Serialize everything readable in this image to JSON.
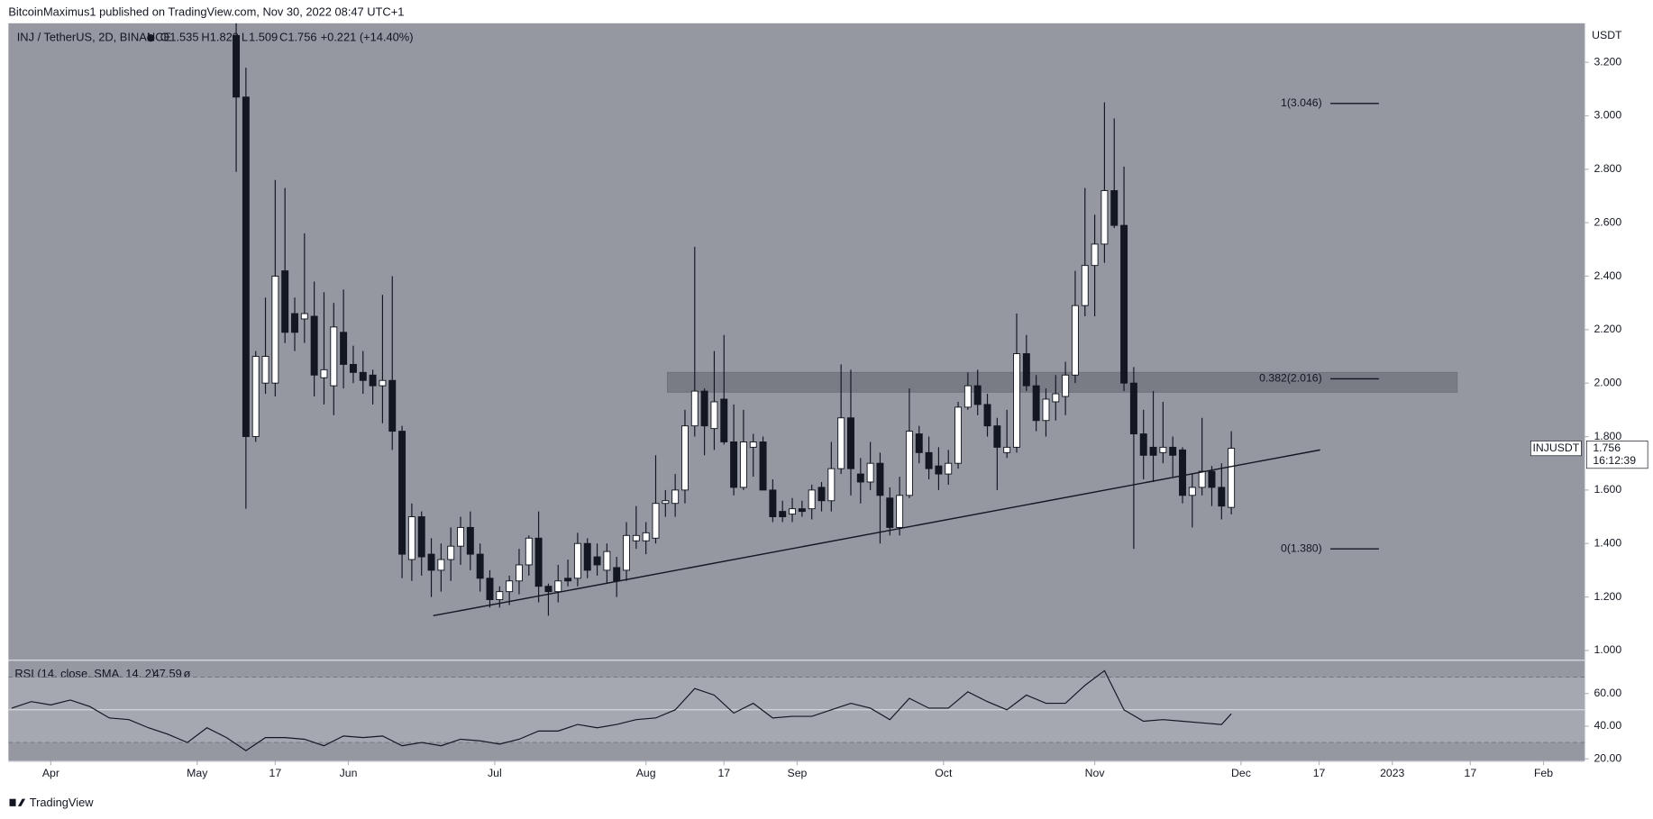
{
  "header": {
    "publisher": "BitcoinMaximus1 published on TradingView.com, Nov 30, 2022 08:47 UTC+1",
    "footer": "TradingView"
  },
  "chart_data": [
    {
      "type": "candlestick",
      "title": "INJ / TetherUS, 2D, BINANCE",
      "ohlc_legend": [
        [
          "O",
          "1.535"
        ],
        [
          "H",
          "1.820"
        ],
        [
          "L",
          "1.509"
        ],
        [
          "C",
          "1.756"
        ]
      ],
      "change": "+0.221 (+14.40%)",
      "y_axis_label": "USDT",
      "symbol_label": "INJUSDT",
      "countdown": "16:12:39",
      "colors": {
        "up": "#ffffff",
        "down": "#131722",
        "background": "#9598a1"
      },
      "x": [
        38,
        40,
        42,
        44,
        46,
        48,
        50,
        52,
        54,
        56,
        58,
        60,
        62,
        64,
        66,
        68,
        70,
        72,
        74,
        76,
        78,
        80,
        82,
        84,
        86,
        88,
        90,
        92,
        94,
        96,
        98,
        100,
        102,
        104,
        106,
        108,
        110,
        112,
        114,
        116,
        118,
        120,
        122,
        124,
        126,
        128,
        130,
        132,
        134,
        136,
        138,
        140,
        142,
        144,
        146,
        148,
        150,
        152,
        154,
        156,
        158,
        160,
        162,
        164,
        166,
        168,
        170,
        172,
        174,
        176,
        178,
        180,
        182,
        184,
        186,
        188,
        190,
        192,
        194,
        196,
        198,
        200,
        202,
        204,
        206,
        208,
        210,
        212,
        214,
        216,
        218,
        220,
        222,
        224,
        226,
        228,
        230,
        232,
        234,
        236,
        238,
        240,
        242
      ],
      "open": [
        3.3,
        3.07,
        1.8,
        2.0,
        2.0,
        2.42,
        2.26,
        2.24,
        2.25,
        2.02,
        1.99,
        2.19,
        2.07,
        2.04,
        2.03,
        1.99,
        2.01,
        1.82,
        1.34,
        1.5,
        1.36,
        1.3,
        1.34,
        1.39,
        1.46,
        1.36,
        1.27,
        1.19,
        1.22,
        1.26,
        1.32,
        1.42,
        1.24,
        1.22,
        1.27,
        1.27,
        1.4,
        1.35,
        1.3,
        1.31,
        1.3,
        1.41,
        1.41,
        1.42,
        1.55,
        1.55,
        1.6,
        1.84,
        1.97,
        1.83,
        1.94,
        1.78,
        1.61,
        1.76,
        1.78,
        1.6,
        1.52,
        1.51,
        1.53,
        1.53,
        1.61,
        1.56,
        1.68,
        1.87,
        1.66,
        1.63,
        1.7,
        1.57,
        1.46,
        1.58,
        1.81,
        1.74,
        1.69,
        1.66,
        1.7,
        1.91,
        1.99,
        1.92,
        1.84,
        1.74,
        1.76,
        2.11,
        1.99,
        1.86,
        1.93,
        1.95,
        2.03,
        2.29,
        2.44,
        2.52,
        2.72,
        2.59,
        2.0,
        1.81,
        1.76,
        1.74,
        1.76,
        1.75,
        1.58,
        1.61,
        1.67,
        1.61,
        1.535
      ],
      "high": [
        3.45,
        3.18,
        2.12,
        2.32,
        2.76,
        2.73,
        2.32,
        2.56,
        2.38,
        2.34,
        2.3,
        2.35,
        2.14,
        2.12,
        2.05,
        2.33,
        2.4,
        1.84,
        1.55,
        1.52,
        1.42,
        1.4,
        1.46,
        1.5,
        1.52,
        1.4,
        1.3,
        1.24,
        1.28,
        1.38,
        1.43,
        1.52,
        1.25,
        1.32,
        1.34,
        1.44,
        1.42,
        1.4,
        1.4,
        1.35,
        1.48,
        1.54,
        1.48,
        1.73,
        1.6,
        1.66,
        1.9,
        2.51,
        1.98,
        2.12,
        2.18,
        1.92,
        1.9,
        1.81,
        1.8,
        1.64,
        1.56,
        1.57,
        1.56,
        1.62,
        1.63,
        1.78,
        2.07,
        2.05,
        1.72,
        1.78,
        1.74,
        1.61,
        1.65,
        1.98,
        1.84,
        1.8,
        1.76,
        1.75,
        1.93,
        2.04,
        2.05,
        1.96,
        1.87,
        1.9,
        2.26,
        2.18,
        2.03,
        1.98,
        2.03,
        2.08,
        2.42,
        2.73,
        2.63,
        3.05,
        2.99,
        2.81,
        2.06,
        1.9,
        1.97,
        1.93,
        1.8,
        1.76,
        1.66,
        1.87,
        1.69,
        1.7,
        1.82
      ],
      "low": [
        2.79,
        1.53,
        1.78,
        1.96,
        1.95,
        2.15,
        2.12,
        2.15,
        1.95,
        1.92,
        1.88,
        1.98,
        2.0,
        1.96,
        1.92,
        1.85,
        1.75,
        1.27,
        1.26,
        1.28,
        1.2,
        1.22,
        1.26,
        1.32,
        1.3,
        1.22,
        1.16,
        1.16,
        1.17,
        1.21,
        1.28,
        1.18,
        1.13,
        1.18,
        1.24,
        1.24,
        1.27,
        1.28,
        1.25,
        1.2,
        1.26,
        1.38,
        1.36,
        1.4,
        1.5,
        1.5,
        1.55,
        1.8,
        1.73,
        1.75,
        1.77,
        1.58,
        1.6,
        1.65,
        1.6,
        1.48,
        1.48,
        1.48,
        1.5,
        1.49,
        1.52,
        1.52,
        1.66,
        1.58,
        1.55,
        1.6,
        1.4,
        1.43,
        1.43,
        1.57,
        1.7,
        1.64,
        1.6,
        1.62,
        1.68,
        1.9,
        1.88,
        1.8,
        1.6,
        1.72,
        1.74,
        1.97,
        1.82,
        1.8,
        1.86,
        1.88,
        2.0,
        2.25,
        2.25,
        2.45,
        2.58,
        1.97,
        1.38,
        1.64,
        1.63,
        1.7,
        1.65,
        1.55,
        1.46,
        1.58,
        1.54,
        1.49,
        1.509
      ],
      "close": [
        3.07,
        1.8,
        2.1,
        2.1,
        2.4,
        2.19,
        2.19,
        2.26,
        2.03,
        2.05,
        2.21,
        2.07,
        2.04,
        2.01,
        1.99,
        2.01,
        1.82,
        1.36,
        1.5,
        1.35,
        1.3,
        1.34,
        1.39,
        1.46,
        1.36,
        1.27,
        1.19,
        1.22,
        1.26,
        1.32,
        1.42,
        1.24,
        1.22,
        1.26,
        1.26,
        1.4,
        1.3,
        1.32,
        1.37,
        1.26,
        1.43,
        1.43,
        1.44,
        1.55,
        1.56,
        1.6,
        1.84,
        1.97,
        1.84,
        1.93,
        1.78,
        1.61,
        1.78,
        1.78,
        1.6,
        1.5,
        1.5,
        1.53,
        1.52,
        1.6,
        1.56,
        1.68,
        1.87,
        1.68,
        1.63,
        1.7,
        1.58,
        1.46,
        1.58,
        1.82,
        1.74,
        1.68,
        1.66,
        1.7,
        1.91,
        1.99,
        1.92,
        1.84,
        1.76,
        1.76,
        2.11,
        1.99,
        1.86,
        1.94,
        1.96,
        2.03,
        2.29,
        2.44,
        2.52,
        2.72,
        2.59,
        2.0,
        1.81,
        1.73,
        1.73,
        1.76,
        1.73,
        1.58,
        1.61,
        1.67,
        1.61,
        1.54,
        1.756
      ],
      "xlim": [
        -8.69,
        314.4
      ],
      "ylim": [
        0.965,
        3.346
      ],
      "yticks": [
        {
          "value": 1.0,
          "label": "1.000"
        },
        {
          "value": 1.2,
          "label": "1.200"
        },
        {
          "value": 1.4,
          "label": "1.400"
        },
        {
          "value": 1.6,
          "label": "1.600"
        },
        {
          "value": 1.8,
          "label": "1.800"
        },
        {
          "value": 2.0,
          "label": "2.000"
        },
        {
          "value": 2.2,
          "label": "2.200"
        },
        {
          "value": 2.4,
          "label": "2.400"
        },
        {
          "value": 2.6,
          "label": "2.600"
        },
        {
          "value": 2.8,
          "label": "2.800"
        },
        {
          "value": 3.0,
          "label": "3.000"
        },
        {
          "value": 3.2,
          "label": "3.200"
        }
      ],
      "xticks": [
        {
          "value": 0,
          "label": "Apr"
        },
        {
          "value": 30,
          "label": "May"
        },
        {
          "value": 46,
          "label": "17"
        },
        {
          "value": 61,
          "label": "Jun"
        },
        {
          "value": 91,
          "label": "Jul"
        },
        {
          "value": 122,
          "label": "Aug"
        },
        {
          "value": 138,
          "label": "17"
        },
        {
          "value": 153,
          "label": "Sep"
        },
        {
          "value": 183,
          "label": "Oct"
        },
        {
          "value": 214,
          "label": "Nov"
        },
        {
          "value": 244,
          "label": "Dec"
        },
        {
          "value": 260,
          "label": "17"
        },
        {
          "value": 275,
          "label": "2023"
        },
        {
          "value": 291,
          "label": "17"
        },
        {
          "value": 306,
          "label": "Feb"
        }
      ],
      "grid": false,
      "resistance_zone": {
        "low": 1.966,
        "high": 2.04,
        "x_start": 126.4,
        "x_end": 288.3
      },
      "trendline": {
        "x": [
          78.4,
          260.2
        ],
        "y": [
          1.13,
          1.75
        ]
      },
      "fib_levels": [
        {
          "value": 3.046,
          "label": "1(3.046)"
        },
        {
          "value": 2.016,
          "label": "0.382(2.016)"
        },
        {
          "value": 1.38,
          "label": "0(1.380)"
        }
      ]
    },
    {
      "type": "line",
      "title": "RSI (14, close, SMA, 14, 2)",
      "color": "#131722",
      "x": [
        -8,
        -4,
        0,
        4,
        8,
        12,
        16,
        20,
        24,
        28,
        32,
        36,
        40,
        44,
        48,
        52,
        56,
        60,
        64,
        68,
        72,
        76,
        80,
        84,
        88,
        92,
        96,
        100,
        104,
        108,
        112,
        116,
        120,
        124,
        128,
        132,
        136,
        140,
        144,
        148,
        152,
        156,
        160,
        164,
        168,
        172,
        176,
        180,
        184,
        188,
        192,
        196,
        200,
        204,
        208,
        212,
        216,
        220,
        224,
        228,
        232,
        236,
        240,
        242
      ],
      "values": [
        51,
        55,
        53,
        56,
        52,
        45,
        44,
        39,
        35,
        30,
        39,
        33,
        25,
        33,
        33,
        32,
        28,
        34,
        33,
        34,
        28,
        30,
        28,
        32,
        31,
        29,
        32,
        37,
        37,
        41,
        39,
        41,
        44,
        45,
        50,
        63,
        59,
        48,
        54,
        45,
        46,
        46,
        50,
        54,
        51,
        44,
        57,
        51,
        51,
        61,
        55,
        50,
        59,
        54,
        54,
        65,
        74,
        50,
        43,
        44,
        43,
        42,
        41,
        47.59
      ],
      "xlim": [
        -8.69,
        314.4
      ],
      "ylim": [
        18.7,
        80
      ],
      "yticks": [
        {
          "value": 20,
          "label": "20.00"
        },
        {
          "value": 40,
          "label": "40.00"
        },
        {
          "value": 60,
          "label": "60.00"
        }
      ],
      "levels": [
        30,
        50,
        70
      ],
      "band_color": "#a5a8b0"
    }
  ]
}
